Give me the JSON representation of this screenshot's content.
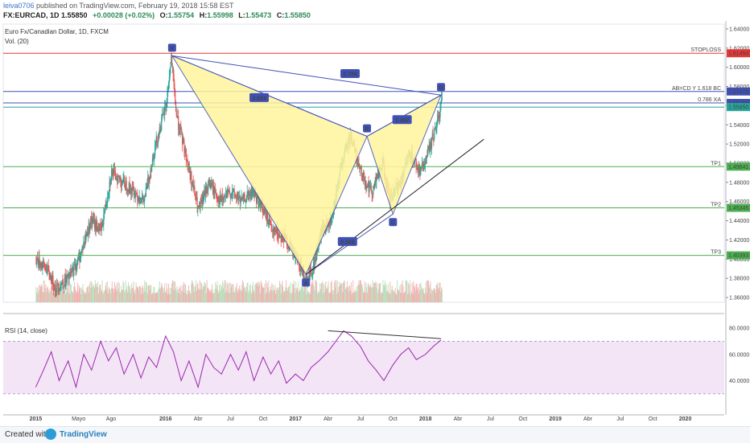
{
  "header": {
    "user": "leiva0706",
    "published": "published on TradingView.com, February 19, 2018 15:58 EST",
    "symbol": "FX:EURCAD, 1D 1.55850",
    "change": "+0.00028 (+0.02%)",
    "o_label": "O:",
    "o_value": "1.55754",
    "h_label": "H:",
    "h_value": "1.55998",
    "l_label": "L:",
    "l_value": "1.55473",
    "c_label": "C:",
    "c_value": "1.55850"
  },
  "footer": {
    "created": "Created with",
    "brand": "TradingView"
  },
  "colors": {
    "pattern_fill": "#fff59d",
    "pattern_line": "#3f51b5",
    "stoploss": "#e53935",
    "target": "#4caf50",
    "rsi_line": "#9c27b0",
    "rsi_band": "#f3e5f5",
    "candle_up": "#26a69a",
    "candle_down": "#ef5350"
  },
  "chart_data": [
    {
      "type": "line",
      "title": "Euro Fx/Canadian Dollar, 1D, FXCM",
      "subtitle": "Vol. (20)",
      "x_ticks": [
        "2015",
        "Mayo",
        "Ago",
        "2016",
        "Abr",
        "Jul",
        "Oct",
        "2017",
        "Abr",
        "Jul",
        "Oct",
        "2018",
        "Abr",
        "Jul",
        "Oct",
        "2019",
        "Abr",
        "Jul",
        "Oct",
        "2020"
      ],
      "y_ticks": [
        1.36,
        1.38,
        1.4,
        1.42,
        1.44,
        1.46,
        1.48,
        1.5,
        1.52,
        1.54,
        1.56,
        1.58,
        1.6,
        1.62,
        1.64
      ],
      "ylim": [
        1.355,
        1.645
      ],
      "price_series": {
        "name": "EURCAD",
        "x": [
          2015.0,
          2015.08,
          2015.15,
          2015.25,
          2015.33,
          2015.42,
          2015.5,
          2015.58,
          2015.67,
          2015.75,
          2015.83,
          2015.92,
          2016.0,
          2016.04,
          2016.08,
          2016.15,
          2016.25,
          2016.33,
          2016.42,
          2016.5,
          2016.58,
          2016.67,
          2016.75,
          2016.83,
          2016.92,
          2017.0,
          2017.08,
          2017.13,
          2017.2,
          2017.28,
          2017.35,
          2017.42,
          2017.5,
          2017.58,
          2017.67,
          2017.72,
          2017.8,
          2017.88,
          2017.96,
          2018.04,
          2018.1,
          2018.13
        ],
        "y": [
          1.4,
          1.39,
          1.37,
          1.38,
          1.4,
          1.44,
          1.43,
          1.49,
          1.48,
          1.47,
          1.46,
          1.52,
          1.56,
          1.61,
          1.55,
          1.51,
          1.45,
          1.48,
          1.46,
          1.47,
          1.46,
          1.47,
          1.45,
          1.43,
          1.42,
          1.4,
          1.38,
          1.39,
          1.43,
          1.44,
          1.5,
          1.53,
          1.49,
          1.47,
          1.5,
          1.46,
          1.48,
          1.51,
          1.49,
          1.52,
          1.55,
          1.57
        ]
      },
      "harmonic_pattern": {
        "points": [
          {
            "label": "X",
            "x": 2016.05,
            "y": 1.612
          },
          {
            "label": "A",
            "x": 2017.08,
            "y": 1.384
          },
          {
            "label": "B",
            "x": 2017.55,
            "y": 1.528
          },
          {
            "label": "C",
            "x": 2017.75,
            "y": 1.447
          },
          {
            "label": "D",
            "x": 2018.12,
            "y": 1.571
          }
        ],
        "ratios": [
          {
            "text": "0.624",
            "x": 2016.72,
            "y": 1.568
          },
          {
            "text": "0.786",
            "x": 2017.42,
            "y": 1.593
          },
          {
            "text": "1.457",
            "x": 2017.82,
            "y": 1.545
          },
          {
            "text": "0.569",
            "x": 2017.4,
            "y": 1.418
          }
        ]
      },
      "trendline_up": {
        "x": [
          2017.08,
          2018.45
        ],
        "y": [
          1.384,
          1.525
        ]
      },
      "horizontal_levels": [
        {
          "label": "STOPLOSS",
          "value": 1.61464,
          "tag": "1.61464",
          "color": "#e53935"
        },
        {
          "label": "AB=CD Y 1.618 BC",
          "value": 1.57479,
          "tag": "1.57479",
          "color": "#3f51b5"
        },
        {
          "label": "0.786 XA",
          "value": 1.56284,
          "tag": "1.56284",
          "color": "#3f51b5"
        },
        {
          "label": "",
          "value": 1.5585,
          "tag": "1.55850",
          "color": "#26a69a"
        },
        {
          "label": "TP1",
          "value": 1.49641,
          "tag": "1.49641",
          "color": "#4caf50"
        },
        {
          "label": "TP2",
          "value": 1.45345,
          "tag": "1.45345",
          "color": "#4caf50"
        },
        {
          "label": "TP3",
          "value": 1.40393,
          "tag": "1.40393",
          "color": "#4caf50"
        }
      ]
    },
    {
      "type": "line",
      "title": "RSI (14, close)",
      "y_ticks": [
        40,
        60,
        80
      ],
      "y_tick_labels": [
        "40.0000",
        "60.0000",
        "80.0000"
      ],
      "ylim": [
        20,
        85
      ],
      "band": [
        30,
        70
      ],
      "series": [
        {
          "name": "RSI",
          "x": [
            2015.0,
            2015.06,
            2015.12,
            2015.18,
            2015.25,
            2015.31,
            2015.37,
            2015.43,
            2015.5,
            2015.56,
            2015.62,
            2015.68,
            2015.75,
            2015.81,
            2015.87,
            2015.93,
            2016.0,
            2016.06,
            2016.12,
            2016.18,
            2016.25,
            2016.31,
            2016.37,
            2016.43,
            2016.5,
            2016.56,
            2016.62,
            2016.68,
            2016.75,
            2016.81,
            2016.87,
            2016.93,
            2017.0,
            2017.06,
            2017.12,
            2017.18,
            2017.25,
            2017.31,
            2017.37,
            2017.43,
            2017.5,
            2017.56,
            2017.62,
            2017.68,
            2017.75,
            2017.81,
            2017.87,
            2017.93,
            2018.0,
            2018.06,
            2018.12
          ],
          "y": [
            35,
            48,
            62,
            40,
            55,
            35,
            60,
            48,
            70,
            55,
            65,
            45,
            60,
            42,
            58,
            50,
            74,
            62,
            40,
            55,
            35,
            60,
            50,
            45,
            60,
            48,
            62,
            40,
            58,
            45,
            55,
            38,
            45,
            40,
            50,
            55,
            62,
            70,
            78,
            74,
            66,
            55,
            48,
            40,
            52,
            60,
            65,
            56,
            60,
            66,
            71
          ]
        }
      ],
      "divergence_line": {
        "x": [
          2017.25,
          2018.12
        ],
        "y": [
          78,
          72
        ]
      }
    }
  ]
}
